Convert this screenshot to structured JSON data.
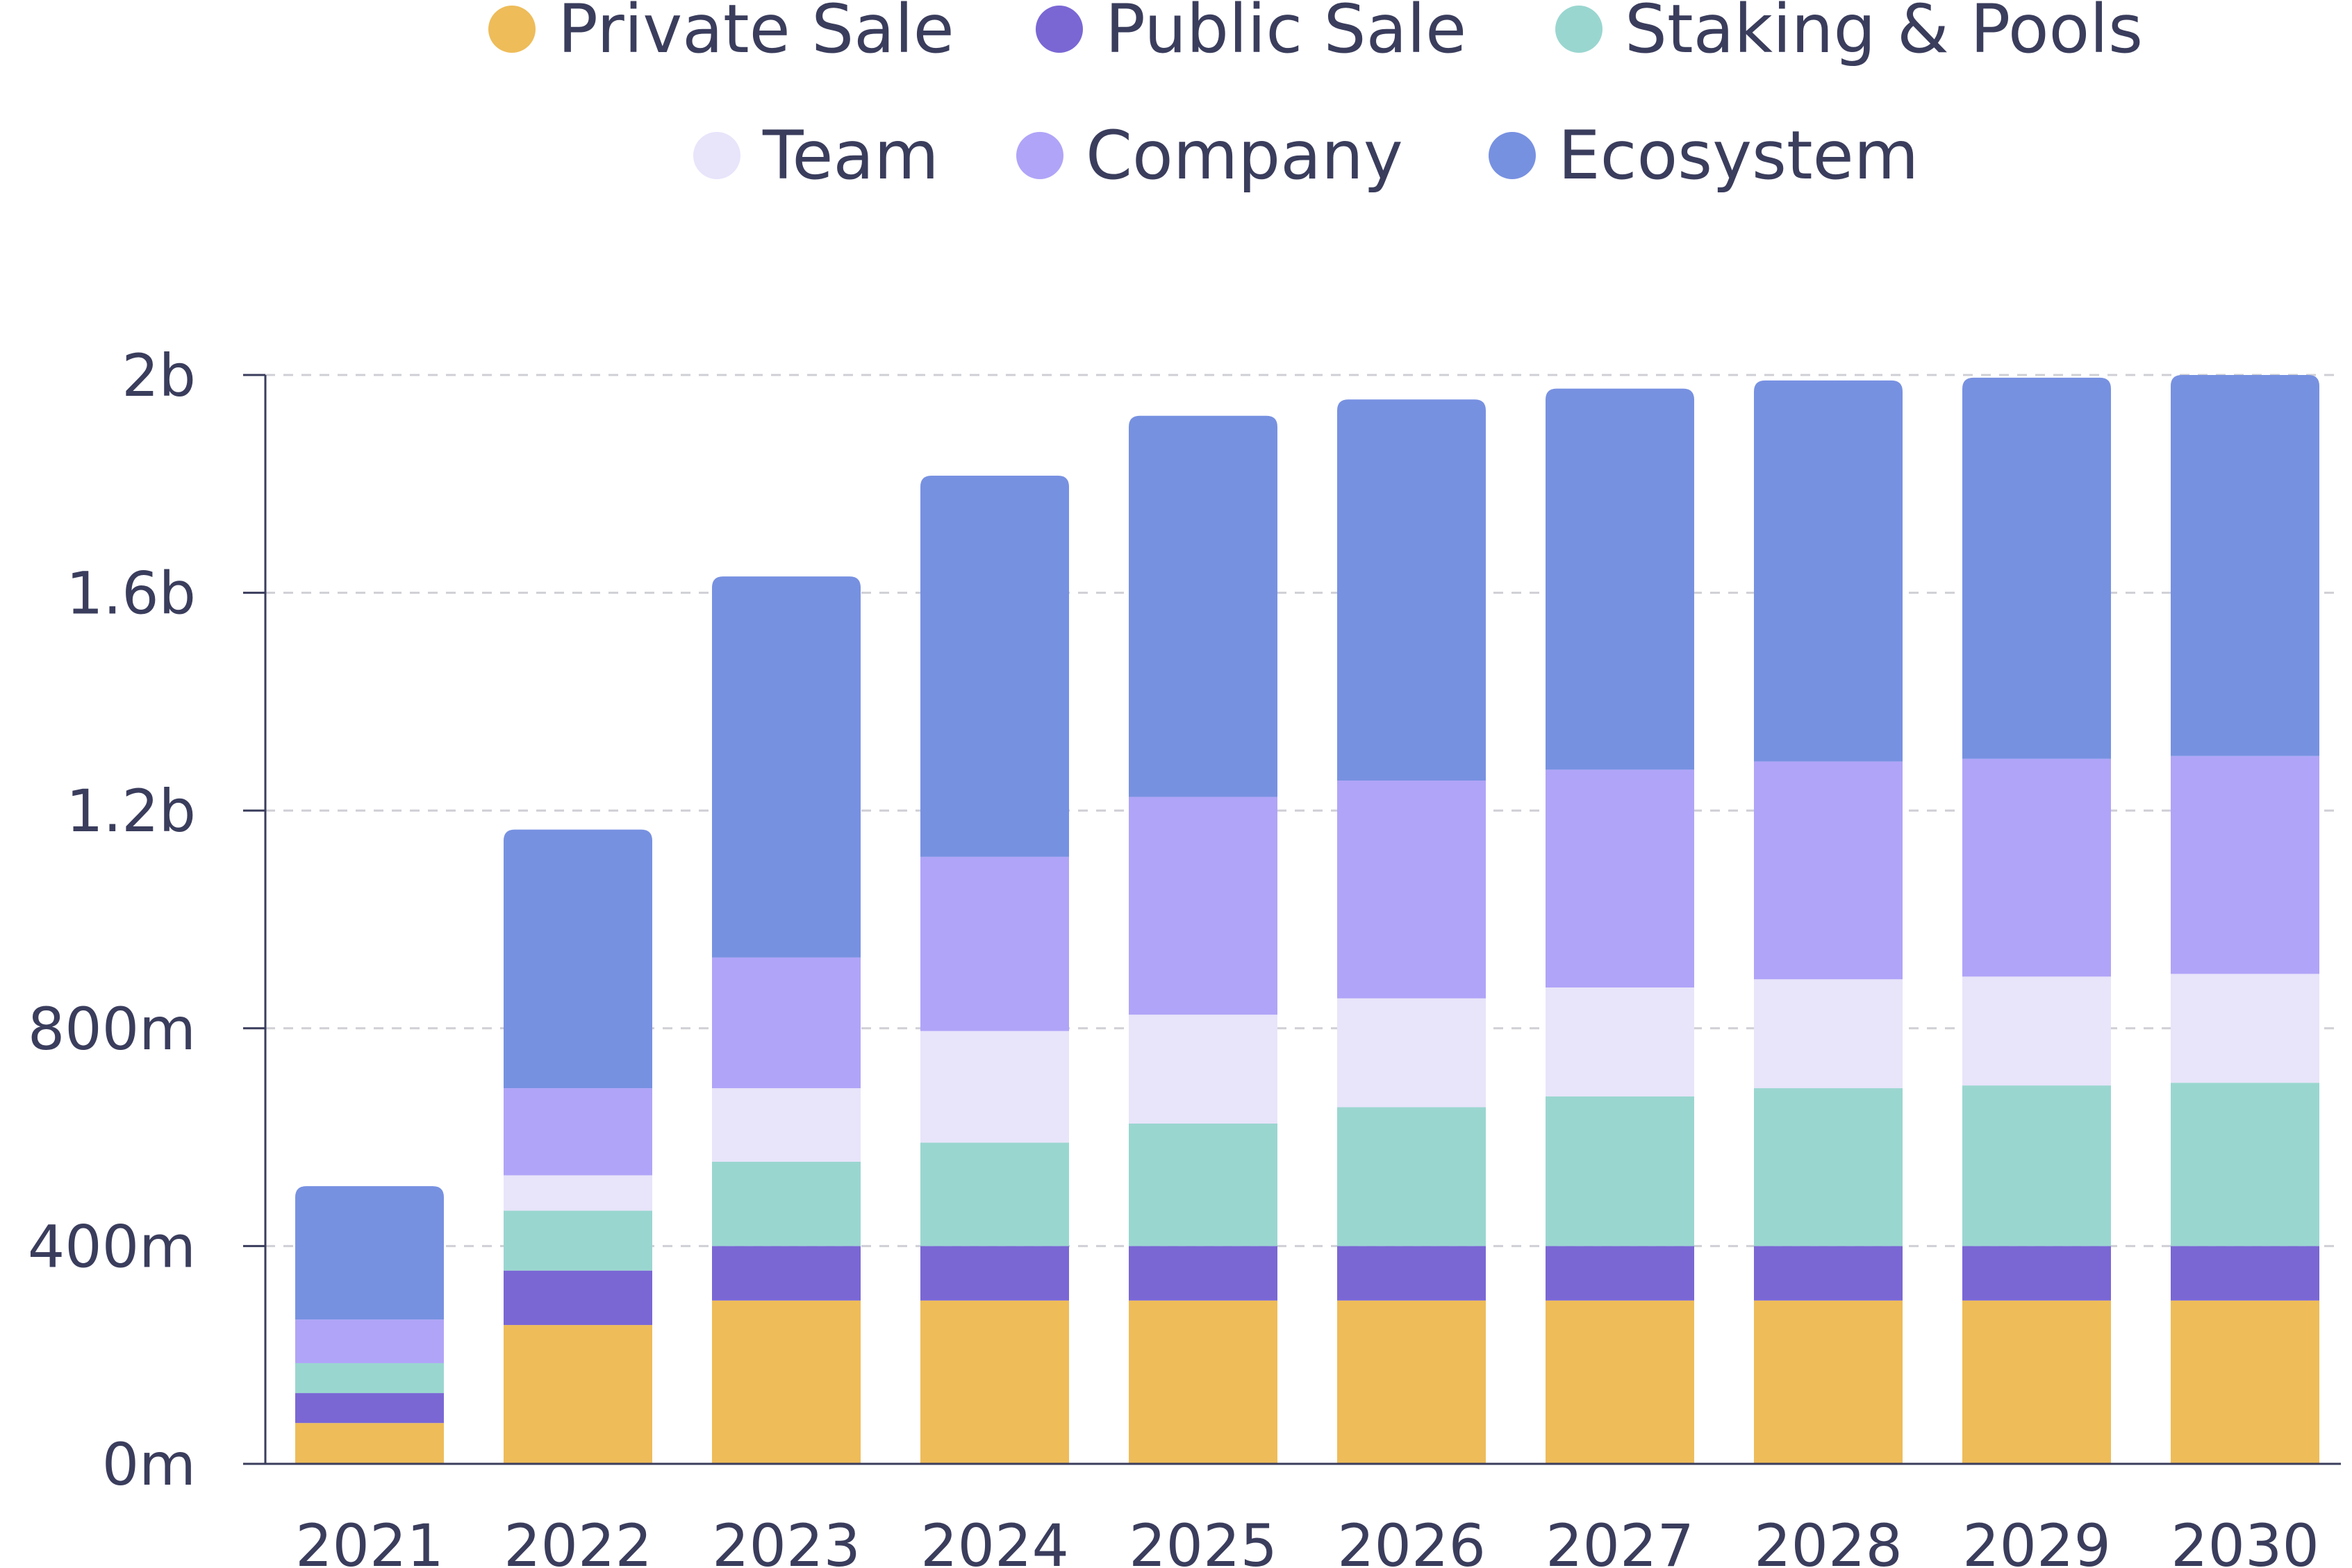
{
  "chart_data": {
    "type": "bar",
    "stacked": true,
    "categories": [
      "2021",
      "2022",
      "2023",
      "2024",
      "2025",
      "2026",
      "2027",
      "2028",
      "2029",
      "2030"
    ],
    "series": [
      {
        "name": "Private Sale",
        "color": "#EEBC59",
        "values": [
          75,
          255,
          300,
          300,
          300,
          300,
          300,
          300,
          300,
          300
        ]
      },
      {
        "name": "Public Sale",
        "color": "#7A67D4",
        "values": [
          55,
          100,
          100,
          100,
          100,
          100,
          100,
          100,
          100,
          100
        ]
      },
      {
        "name": "Staking & Pools",
        "color": "#9AD6D0",
        "values": [
          55,
          110,
          155,
          190,
          225,
          255,
          275,
          290,
          295,
          300
        ]
      },
      {
        "name": "Team",
        "color": "#E8E4FA",
        "values": [
          0,
          65,
          135,
          205,
          200,
          200,
          200,
          200,
          200,
          200
        ]
      },
      {
        "name": "Company",
        "color": "#B0A4F8",
        "values": [
          80,
          160,
          240,
          320,
          400,
          400,
          400,
          400,
          400,
          400
        ]
      },
      {
        "name": "Ecosystem",
        "color": "#7791E1",
        "values": [
          245,
          475,
          700,
          700,
          700,
          700,
          700,
          700,
          700,
          700
        ]
      }
    ],
    "y_ticks": [
      {
        "value": 0,
        "label": "0m"
      },
      {
        "value": 400,
        "label": "400m"
      },
      {
        "value": 800,
        "label": "800m"
      },
      {
        "value": 1200,
        "label": "1.2b"
      },
      {
        "value": 1600,
        "label": "1.6b"
      },
      {
        "value": 2000,
        "label": "2b"
      }
    ],
    "ylim": [
      0,
      2000
    ],
    "grid": true,
    "legend_position": "top-center"
  }
}
